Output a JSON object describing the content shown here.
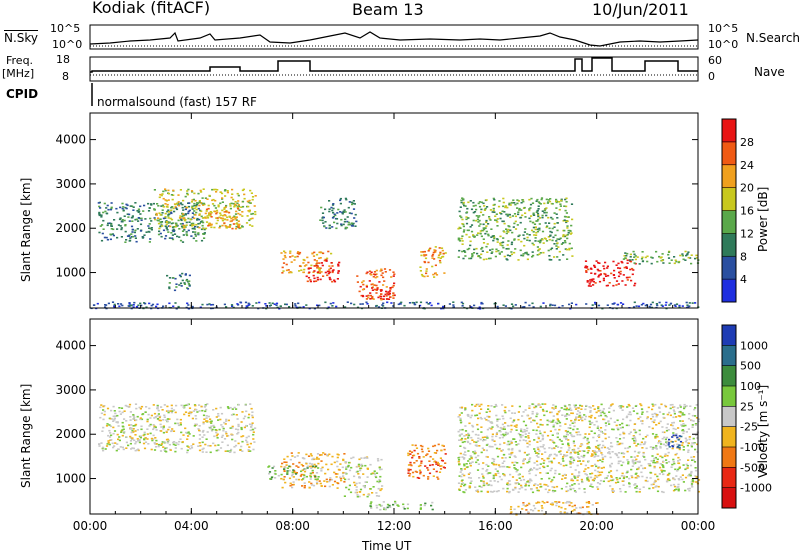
{
  "header": {
    "station": "Kodiak (fitACF)",
    "beam": "Beam 13",
    "date": "10/Jun/2011"
  },
  "top_panels": {
    "nsky_label": "N.Sky",
    "nsky_ticks": [
      "10^5",
      "10^0"
    ],
    "nsearch_label": "N.Search",
    "nsearch_ticks": [
      "10^5",
      "10^0"
    ],
    "freq_label_1": "Freq.",
    "freq_label_2": "[MHz]",
    "freq_ticks": [
      "18",
      "8"
    ],
    "nave_label": "Nave",
    "nave_ticks": [
      "60",
      "0"
    ],
    "cpid_label": "CPID",
    "cpid_text": "normalsound (fast) 157 RF"
  },
  "chart_data": [
    {
      "type": "heatmap",
      "name": "power",
      "xlabel": "",
      "ylabel": "Slant Range [km]",
      "x_ticks": [
        "00:00",
        "04:00",
        "08:00",
        "12:00",
        "16:00",
        "20:00",
        "00:00"
      ],
      "y_ticks": [
        1000,
        2000,
        3000,
        4000
      ],
      "ylim": [
        200,
        4600
      ],
      "colorbar": {
        "label": "Power [dB]",
        "ticks": [
          4,
          8,
          12,
          16,
          20,
          24,
          28
        ],
        "colors": [
          "#1f2fe0",
          "#2a4fa0",
          "#2f7a5a",
          "#5aa84a",
          "#c8c81e",
          "#f0a01e",
          "#f05a14",
          "#e81414"
        ]
      },
      "patches": [
        {
          "t0": 0.3,
          "t1": 4.5,
          "r0": 1700,
          "r1": 2600,
          "level": 2
        },
        {
          "t0": 2.5,
          "t1": 6.5,
          "r0": 2000,
          "r1": 2900,
          "level": 4
        },
        {
          "t0": 4.5,
          "t1": 6.0,
          "r0": 2000,
          "r1": 2500,
          "level": 5
        },
        {
          "t0": 3.0,
          "t1": 4.0,
          "r0": 600,
          "r1": 1000,
          "level": 2
        },
        {
          "t0": 7.5,
          "t1": 9.5,
          "r0": 1000,
          "r1": 1500,
          "level": 5
        },
        {
          "t0": 8.5,
          "t1": 9.8,
          "r0": 800,
          "r1": 1300,
          "level": 7
        },
        {
          "t0": 9.0,
          "t1": 10.5,
          "r0": 2000,
          "r1": 2700,
          "level": 2
        },
        {
          "t0": 10.5,
          "t1": 12.0,
          "r0": 400,
          "r1": 1100,
          "level": 6
        },
        {
          "t0": 11.0,
          "t1": 12.0,
          "r0": 400,
          "r1": 700,
          "level": 7
        },
        {
          "t0": 13.0,
          "t1": 14.0,
          "r0": 900,
          "r1": 1600,
          "level": 5
        },
        {
          "t0": 14.5,
          "t1": 19.0,
          "r0": 1300,
          "r1": 2700,
          "level": 3
        },
        {
          "t0": 19.5,
          "t1": 21.5,
          "r0": 700,
          "r1": 1300,
          "level": 7
        },
        {
          "t0": 21.0,
          "t1": 24.0,
          "r0": 1200,
          "r1": 1500,
          "level": 3
        },
        {
          "t0": 0.0,
          "t1": 24.0,
          "r0": 200,
          "r1": 350,
          "level": 1
        }
      ]
    },
    {
      "type": "heatmap",
      "name": "velocity",
      "xlabel": "Time UT",
      "ylabel": "Slant Range [km]",
      "x_ticks": [
        "00:00",
        "04:00",
        "08:00",
        "12:00",
        "16:00",
        "20:00",
        "00:00"
      ],
      "y_ticks": [
        1000,
        2000,
        3000,
        4000
      ],
      "ylim": [
        200,
        4600
      ],
      "colorbar": {
        "label": "Velocity [m s⁻¹]",
        "ticks": [
          1000,
          500,
          100,
          25,
          -25,
          -100,
          -500,
          -1000
        ],
        "colors": [
          "#1e3cb4",
          "#2a6e8c",
          "#3c8c3c",
          "#78c83c",
          "#c8c8c8",
          "#f0b41e",
          "#f07814",
          "#e82814",
          "#d81010"
        ]
      },
      "patches": [
        {
          "t0": 0.3,
          "t1": 6.5,
          "r0": 1600,
          "r1": 2700,
          "level": 4
        },
        {
          "t0": 7.5,
          "t1": 10.0,
          "r0": 800,
          "r1": 1600,
          "level": 5
        },
        {
          "t0": 7.0,
          "t1": 9.0,
          "r0": 1000,
          "r1": 1300,
          "level": 3
        },
        {
          "t0": 10.0,
          "t1": 11.5,
          "r0": 600,
          "r1": 1500,
          "level": 4
        },
        {
          "t0": 11.0,
          "t1": 13.5,
          "r0": 300,
          "r1": 500,
          "level": 3
        },
        {
          "t0": 12.5,
          "t1": 14.0,
          "r0": 1000,
          "r1": 1800,
          "level": 6
        },
        {
          "t0": 14.5,
          "t1": 24.0,
          "r0": 700,
          "r1": 2700,
          "level": 4
        },
        {
          "t0": 16.5,
          "t1": 20.0,
          "r0": 200,
          "r1": 500,
          "level": 5
        },
        {
          "t0": 22.8,
          "t1": 23.3,
          "r0": 1700,
          "r1": 2000,
          "level": 0
        }
      ]
    }
  ]
}
